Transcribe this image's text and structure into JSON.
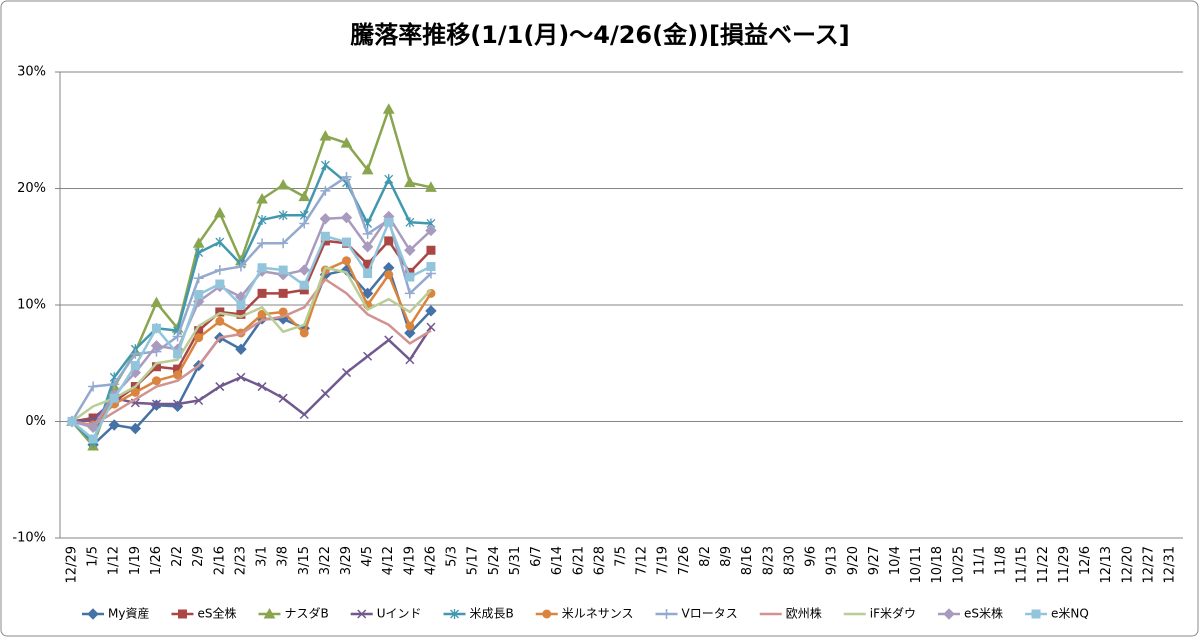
{
  "chart_data": {
    "type": "line",
    "title": "騰落率推移(1/1(月)～4/26(金))[損益ベース]",
    "categories": [
      "12/29",
      "1/5",
      "1/12",
      "1/19",
      "1/26",
      "2/2",
      "2/9",
      "2/16",
      "2/23",
      "3/1",
      "3/8",
      "3/15",
      "3/22",
      "3/29",
      "4/5",
      "4/12",
      "4/19",
      "4/26",
      "5/3",
      "5/17",
      "5/24",
      "5/31",
      "6/7",
      "6/14",
      "6/21",
      "6/28",
      "7/5",
      "7/12",
      "7/19",
      "7/26",
      "8/2",
      "8/9",
      "8/16",
      "8/23",
      "8/30",
      "9/6",
      "9/13",
      "9/20",
      "9/27",
      "10/4",
      "10/11",
      "10/18",
      "10/25",
      "11/1",
      "11/8",
      "11/15",
      "11/22",
      "11/29",
      "12/6",
      "12/13",
      "12/20",
      "12/27",
      "12/31"
    ],
    "ylim": [
      -10,
      30
    ],
    "yticks": [
      {
        "value": -10,
        "label": "-10%"
      },
      {
        "value": 0,
        "label": "0%"
      },
      {
        "value": 10,
        "label": "10%"
      },
      {
        "value": 20,
        "label": "20%"
      },
      {
        "value": 30,
        "label": "30%"
      }
    ],
    "grid": true,
    "legend": "bottom",
    "series": [
      {
        "name": "My資産",
        "color": "#4572a7",
        "marker": "diamond",
        "values": [
          0,
          -2,
          -0.3,
          -0.6,
          1.4,
          1.3,
          4.8,
          7.2,
          6.2,
          8.8,
          8.8,
          8.0,
          12.6,
          13.0,
          11.0,
          13.2,
          7.6,
          9.5,
          null,
          null,
          null,
          null,
          null,
          null,
          null,
          null,
          null,
          null,
          null,
          null,
          null,
          null,
          null,
          null,
          null,
          null,
          null,
          null,
          null,
          null,
          null,
          null,
          null,
          null,
          null,
          null,
          null,
          null,
          null,
          null,
          null,
          null,
          null
        ]
      },
      {
        "name": "eS全株",
        "color": "#aa4643",
        "marker": "square",
        "values": [
          0,
          0.3,
          1.7,
          3.0,
          4.7,
          4.5,
          7.8,
          9.4,
          9.2,
          11.0,
          11.0,
          11.3,
          15.5,
          15.3,
          13.5,
          15.5,
          12.8,
          14.7,
          null,
          null,
          null,
          null,
          null,
          null,
          null,
          null,
          null,
          null,
          null,
          null,
          null,
          null,
          null,
          null,
          null,
          null,
          null,
          null,
          null,
          null,
          null,
          null,
          null,
          null,
          null,
          null,
          null,
          null,
          null,
          null,
          null,
          null,
          null
        ]
      },
      {
        "name": "ナスダB",
        "color": "#89a54e",
        "marker": "triangle",
        "values": [
          0,
          -2.1,
          3.0,
          6.0,
          10.2,
          8.0,
          15.3,
          17.9,
          13.8,
          19.1,
          20.3,
          19.3,
          24.5,
          23.9,
          21.6,
          26.8,
          20.5,
          20.1,
          null,
          null,
          null,
          null,
          null,
          null,
          null,
          null,
          null,
          null,
          null,
          null,
          null,
          null,
          null,
          null,
          null,
          null,
          null,
          null,
          null,
          null,
          null,
          null,
          null,
          null,
          null,
          null,
          null,
          null,
          null,
          null,
          null,
          null,
          null
        ]
      },
      {
        "name": "Uインド",
        "color": "#71588f",
        "marker": "x",
        "values": [
          0,
          0.1,
          2.0,
          1.6,
          1.5,
          1.5,
          1.8,
          3.0,
          3.8,
          3.0,
          2.0,
          0.6,
          2.4,
          4.2,
          5.6,
          7.0,
          5.3,
          8.1,
          null,
          null,
          null,
          null,
          null,
          null,
          null,
          null,
          null,
          null,
          null,
          null,
          null,
          null,
          null,
          null,
          null,
          null,
          null,
          null,
          null,
          null,
          null,
          null,
          null,
          null,
          null,
          null,
          null,
          null,
          null,
          null,
          null,
          null,
          null
        ]
      },
      {
        "name": "米成長B",
        "color": "#4198af",
        "marker": "star",
        "values": [
          0,
          -1.8,
          3.8,
          6.2,
          8.0,
          7.8,
          14.5,
          15.4,
          13.5,
          17.3,
          17.7,
          17.7,
          22.0,
          20.5,
          17.0,
          20.8,
          17.1,
          17.0,
          null,
          null,
          null,
          null,
          null,
          null,
          null,
          null,
          null,
          null,
          null,
          null,
          null,
          null,
          null,
          null,
          null,
          null,
          null,
          null,
          null,
          null,
          null,
          null,
          null,
          null,
          null,
          null,
          null,
          null,
          null,
          null,
          null,
          null,
          null
        ]
      },
      {
        "name": "米ルネサンス",
        "color": "#db843d",
        "marker": "circle",
        "values": [
          0,
          -0.3,
          1.5,
          2.5,
          3.5,
          4.0,
          7.2,
          8.6,
          7.6,
          9.2,
          9.4,
          7.6,
          13.0,
          13.8,
          10.0,
          12.6,
          8.2,
          11.0,
          null,
          null,
          null,
          null,
          null,
          null,
          null,
          null,
          null,
          null,
          null,
          null,
          null,
          null,
          null,
          null,
          null,
          null,
          null,
          null,
          null,
          null,
          null,
          null,
          null,
          null,
          null,
          null,
          null,
          null,
          null,
          null,
          null,
          null,
          null
        ]
      },
      {
        "name": "Vロータス",
        "color": "#93a9cf",
        "marker": "plus",
        "values": [
          0,
          3.0,
          3.2,
          5.8,
          6.0,
          7.3,
          12.3,
          13.0,
          13.3,
          15.3,
          15.3,
          17.0,
          19.8,
          21.0,
          16.1,
          17.3,
          11.0,
          12.7,
          null,
          null,
          null,
          null,
          null,
          null,
          null,
          null,
          null,
          null,
          null,
          null,
          null,
          null,
          null,
          null,
          null,
          null,
          null,
          null,
          null,
          null,
          null,
          null,
          null,
          null,
          null,
          null,
          null,
          null,
          null,
          null,
          null,
          null,
          null
        ]
      },
      {
        "name": "欧州株",
        "color": "#d19392",
        "marker": "none",
        "values": [
          0,
          -0.3,
          0.8,
          1.9,
          3.0,
          3.5,
          4.8,
          7.2,
          7.5,
          8.7,
          9.0,
          9.8,
          12.2,
          11.0,
          9.2,
          8.3,
          6.7,
          7.8,
          null,
          null,
          null,
          null,
          null,
          null,
          null,
          null,
          null,
          null,
          null,
          null,
          null,
          null,
          null,
          null,
          null,
          null,
          null,
          null,
          null,
          null,
          null,
          null,
          null,
          null,
          null,
          null,
          null,
          null,
          null,
          null,
          null,
          null,
          null
        ]
      },
      {
        "name": "iF米ダウ",
        "color": "#b9cd96",
        "marker": "none",
        "values": [
          0,
          1.3,
          2.0,
          3.0,
          5.0,
          5.3,
          8.2,
          9.3,
          9.0,
          9.8,
          7.7,
          8.3,
          13.2,
          12.8,
          9.6,
          10.5,
          9.4,
          11.3,
          null,
          null,
          null,
          null,
          null,
          null,
          null,
          null,
          null,
          null,
          null,
          null,
          null,
          null,
          null,
          null,
          null,
          null,
          null,
          null,
          null,
          null,
          null,
          null,
          null,
          null,
          null,
          null,
          null,
          null,
          null,
          null,
          null,
          null,
          null
        ]
      },
      {
        "name": "eS米株",
        "color": "#a99bbd",
        "marker": "diamond",
        "values": [
          0,
          -0.5,
          2.3,
          4.2,
          6.5,
          6.2,
          10.3,
          11.6,
          10.7,
          12.9,
          12.6,
          13.0,
          17.4,
          17.5,
          15.0,
          17.6,
          14.7,
          16.4,
          null,
          null,
          null,
          null,
          null,
          null,
          null,
          null,
          null,
          null,
          null,
          null,
          null,
          null,
          null,
          null,
          null,
          null,
          null,
          null,
          null,
          null,
          null,
          null,
          null,
          null,
          null,
          null,
          null,
          null,
          null,
          null,
          null,
          null,
          null
        ]
      },
      {
        "name": "e米NQ",
        "color": "#92c5dc",
        "marker": "square",
        "values": [
          0,
          -1.5,
          2.0,
          4.8,
          8.0,
          5.8,
          10.9,
          11.8,
          10.0,
          13.2,
          13.0,
          11.7,
          15.9,
          15.4,
          12.7,
          17.1,
          12.4,
          13.3,
          null,
          null,
          null,
          null,
          null,
          null,
          null,
          null,
          null,
          null,
          null,
          null,
          null,
          null,
          null,
          null,
          null,
          null,
          null,
          null,
          null,
          null,
          null,
          null,
          null,
          null,
          null,
          null,
          null,
          null,
          null,
          null,
          null,
          null,
          null
        ]
      }
    ]
  }
}
